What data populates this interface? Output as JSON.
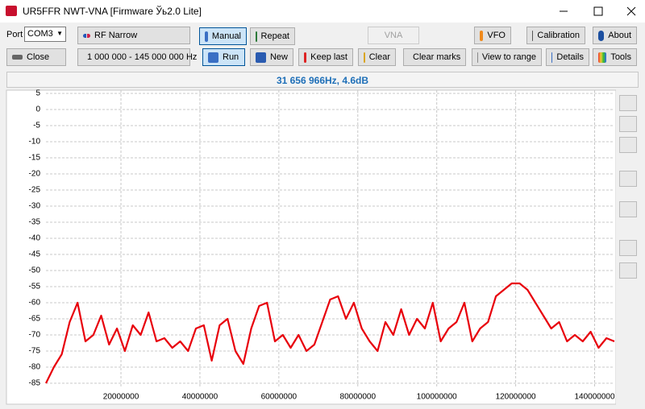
{
  "window": {
    "title": "UR5FFR NWT-VNA [Firmware Ўь2.0 Lite]"
  },
  "toolbar": {
    "port_label": "Port",
    "port": "COM3",
    "mode": "RF Narrow",
    "manual": "Manual",
    "repeat": "Repeat",
    "vna": "VNA",
    "vfo": "VFO",
    "calibration": "Calibration",
    "about": "About",
    "close": "Close",
    "range": "1 000 000 - 145 000 000 Hz",
    "run": "Run",
    "new": "New",
    "keep_last": "Keep last",
    "clear": "Clear",
    "clear_marks": "Clear marks",
    "view_to_range": "View to range",
    "details": "Details",
    "tools": "Tools"
  },
  "status": "31 656 966Hz, 4.6dB",
  "chart_data": {
    "type": "line",
    "grid": true,
    "xlim": [
      1000000,
      145000000
    ],
    "xticks": [
      20000000,
      40000000,
      60000000,
      80000000,
      100000000,
      120000000,
      140000000
    ],
    "ylim": [
      -86,
      6
    ],
    "yticks": [
      5,
      0,
      -5,
      -10,
      -15,
      -20,
      -25,
      -30,
      -35,
      -40,
      -45,
      -50,
      -55,
      -60,
      -65,
      -70,
      -75,
      -80,
      -85
    ],
    "series": [
      {
        "color": "#e8000b",
        "x": [
          1000000,
          3000000,
          5000000,
          7000000,
          9000000,
          11000000,
          13000000,
          15000000,
          17000000,
          19000000,
          21000000,
          23000000,
          25000000,
          27000000,
          29000000,
          31000000,
          33000000,
          35000000,
          37000000,
          39000000,
          41000000,
          43000000,
          45000000,
          47000000,
          49000000,
          51000000,
          53000000,
          55000000,
          57000000,
          59000000,
          61000000,
          63000000,
          65000000,
          67000000,
          69000000,
          71000000,
          73000000,
          75000000,
          77000000,
          79000000,
          81000000,
          83000000,
          85000000,
          87000000,
          89000000,
          91000000,
          93000000,
          95000000,
          97000000,
          99000000,
          101000000,
          103000000,
          105000000,
          107000000,
          109000000,
          111000000,
          113000000,
          115000000,
          117000000,
          119000000,
          121000000,
          123000000,
          125000000,
          127000000,
          129000000,
          131000000,
          133000000,
          135000000,
          137000000,
          139000000,
          141000000,
          143000000,
          145000000
        ],
        "values": [
          -85,
          -80,
          -76,
          -66,
          -60,
          -72,
          -70,
          -64,
          -73,
          -68,
          -75,
          -67,
          -70,
          -63,
          -72,
          -71,
          -74,
          -72,
          -75,
          -68,
          -67,
          -78,
          -67,
          -65,
          -75,
          -79,
          -68,
          -61,
          -60,
          -72,
          -70,
          -74,
          -70,
          -75,
          -73,
          -66,
          -59,
          -58,
          -65,
          -60,
          -68,
          -72,
          -75,
          -66,
          -70,
          -62,
          -70,
          -65,
          -68,
          -60,
          -72,
          -68,
          -66,
          -60,
          -72,
          -68,
          -66,
          -58,
          -56,
          -54,
          -54,
          -56,
          -60,
          -64,
          -68,
          -66,
          -72,
          -70,
          -72,
          -69,
          -74,
          -71,
          -72
        ]
      }
    ]
  }
}
